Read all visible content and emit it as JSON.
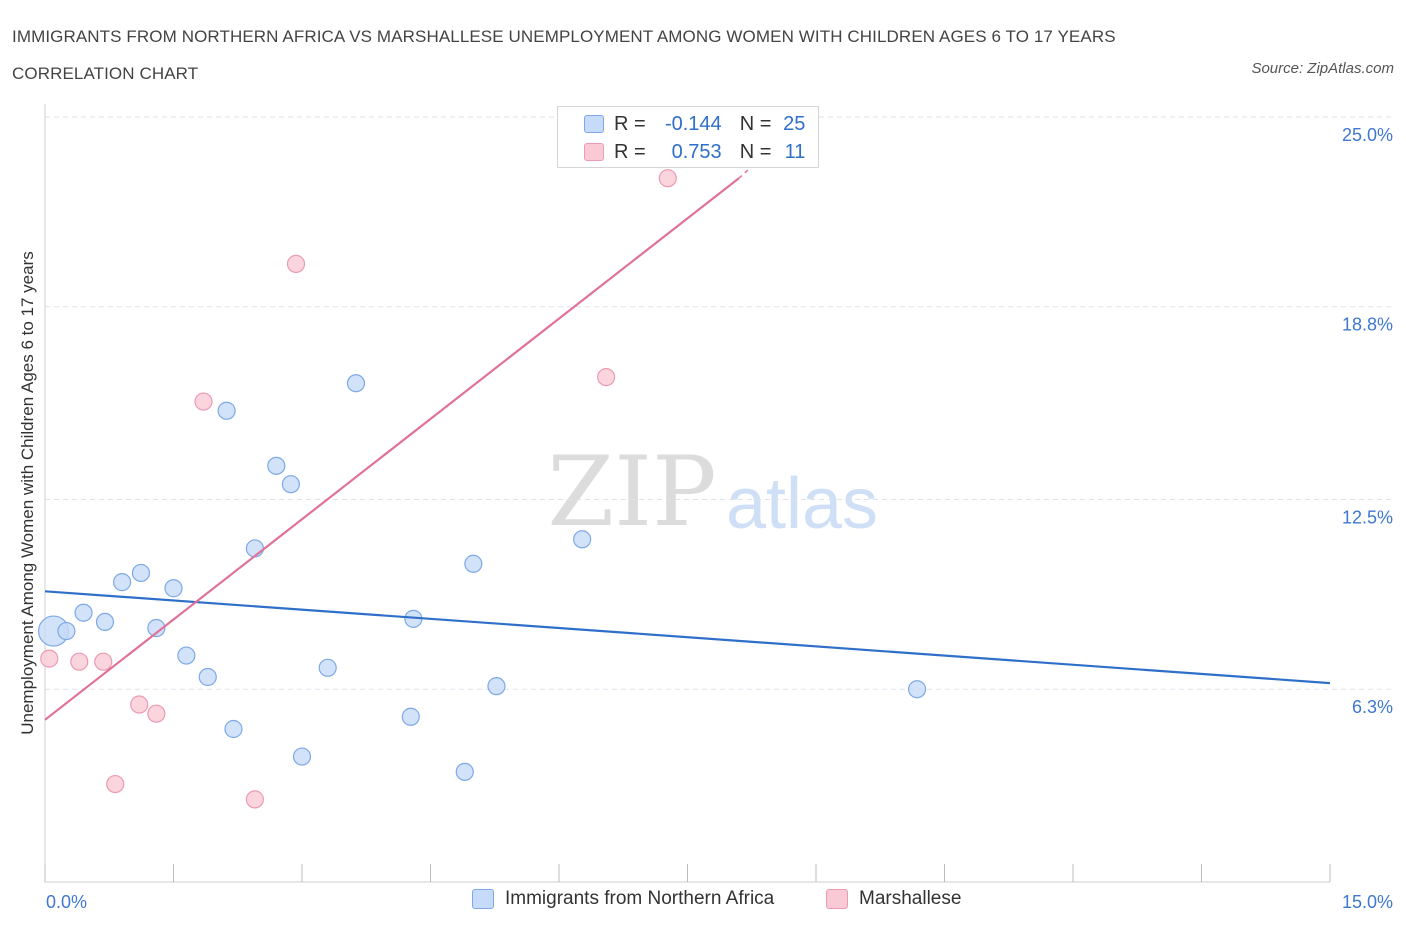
{
  "title": "IMMIGRANTS FROM NORTHERN AFRICA VS MARSHALLESE UNEMPLOYMENT AMONG WOMEN WITH CHILDREN AGES 6 TO 17 YEARS CORRELATION CHART",
  "source": "Source: ZipAtlas.com",
  "watermark": {
    "zip": "ZIP",
    "atlas": "atlas"
  },
  "legend": {
    "rows": [
      {
        "r_label": "R =",
        "r_value": "-0.144",
        "n_label": "N =",
        "n_value": "25"
      },
      {
        "r_label": "R =",
        "r_value": "0.753",
        "n_label": "N =",
        "n_value": "11"
      }
    ]
  },
  "colors": {
    "blue_fill": "#c6dbf8",
    "blue_stroke": "#7ea9e6",
    "blue_line": "#2f6fc9",
    "pink_fill": "#f9cad6",
    "pink_stroke": "#ec9ab1",
    "pink_line": "#e0729a",
    "grid": "#dde2ea",
    "tick_label": "#3f78d0"
  },
  "chart_data": {
    "type": "scatter",
    "title": "IMMIGRANTS FROM NORTHERN AFRICA VS MARSHALLESE UNEMPLOYMENT AMONG WOMEN WITH CHILDREN AGES 6 TO 17 YEARS CORRELATION CHART",
    "xlabel": "",
    "ylabel": "Unemployment Among Women with Children Ages 6 to 17 years",
    "xlim": [
      0,
      15
    ],
    "ylim": [
      0,
      25
    ],
    "x_tick_labels": [
      "0.0%",
      "15.0%"
    ],
    "y_ticks": [
      6.3,
      12.5,
      18.8,
      25.0
    ],
    "y_tick_labels": [
      "6.3%",
      "12.5%",
      "18.8%",
      "25.0%"
    ],
    "grid": true,
    "series": [
      {
        "name": "Immigrants from Northern Africa",
        "color": "blue",
        "points": [
          {
            "x": 0.1,
            "y": 8.2,
            "size": "large"
          },
          {
            "x": 0.25,
            "y": 8.2
          },
          {
            "x": 0.45,
            "y": 8.8
          },
          {
            "x": 0.7,
            "y": 8.5
          },
          {
            "x": 0.9,
            "y": 9.8
          },
          {
            "x": 1.12,
            "y": 10.1
          },
          {
            "x": 1.3,
            "y": 8.3
          },
          {
            "x": 1.5,
            "y": 9.6
          },
          {
            "x": 1.65,
            "y": 7.4
          },
          {
            "x": 1.9,
            "y": 6.7
          },
          {
            "x": 2.12,
            "y": 15.4
          },
          {
            "x": 2.2,
            "y": 5.0
          },
          {
            "x": 2.45,
            "y": 10.9
          },
          {
            "x": 2.7,
            "y": 13.6
          },
          {
            "x": 2.87,
            "y": 13.0
          },
          {
            "x": 3.0,
            "y": 4.1
          },
          {
            "x": 3.3,
            "y": 7.0
          },
          {
            "x": 3.63,
            "y": 16.3
          },
          {
            "x": 4.27,
            "y": 5.4
          },
          {
            "x": 4.3,
            "y": 8.6
          },
          {
            "x": 4.9,
            "y": 3.6
          },
          {
            "x": 5.0,
            "y": 10.4
          },
          {
            "x": 5.27,
            "y": 6.4
          },
          {
            "x": 6.27,
            "y": 11.2
          },
          {
            "x": 10.18,
            "y": 6.3
          }
        ],
        "trend": {
          "x": [
            0,
            15
          ],
          "y": [
            9.5,
            6.5
          ]
        }
      },
      {
        "name": "Marshallese",
        "color": "pink",
        "points": [
          {
            "x": 0.05,
            "y": 7.3
          },
          {
            "x": 0.4,
            "y": 7.2
          },
          {
            "x": 0.68,
            "y": 7.2
          },
          {
            "x": 0.82,
            "y": 3.2
          },
          {
            "x": 1.1,
            "y": 5.8
          },
          {
            "x": 1.3,
            "y": 5.5
          },
          {
            "x": 1.85,
            "y": 15.7
          },
          {
            "x": 2.45,
            "y": 2.7
          },
          {
            "x": 2.93,
            "y": 20.2
          },
          {
            "x": 6.55,
            "y": 16.5
          },
          {
            "x": 7.27,
            "y": 23.0
          }
        ],
        "trend": {
          "x": [
            0,
            8.1
          ],
          "y": [
            5.3,
            23.0
          ]
        },
        "trend_dashed_extension": {
          "x": [
            8.1,
            8.5
          ],
          "y": [
            23.0,
            24.0
          ]
        }
      }
    ],
    "legend_entries": [
      "Immigrants from Northern Africa",
      "Marshallese"
    ]
  }
}
